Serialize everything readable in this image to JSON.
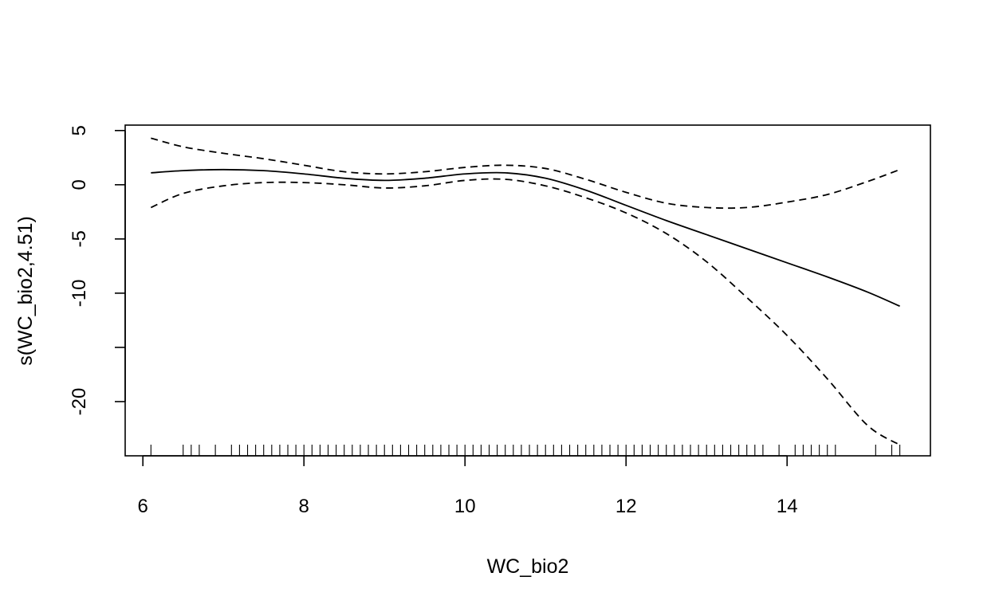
{
  "chart_data": {
    "type": "line",
    "title": "",
    "xlabel": "WC_bio2",
    "ylabel": "s(WC_bio2,4.51)",
    "xlim": [
      5.78,
      15.78
    ],
    "ylim": [
      -25.0,
      5.5
    ],
    "x_ticks": [
      6,
      8,
      10,
      12,
      14
    ],
    "x_tick_labels": [
      "6",
      "8",
      "10",
      "12",
      "14"
    ],
    "y_ticks": [
      5,
      0,
      -5,
      -10,
      -15,
      -20
    ],
    "y_tick_labels": [
      "5",
      "0",
      "-5",
      "-10",
      "",
      "-20"
    ],
    "grid": false,
    "legend": "none",
    "series": [
      {
        "role": "estimate",
        "line_style": "solid",
        "x": [
          6.1,
          6.5,
          7.0,
          7.5,
          8.0,
          8.5,
          9.0,
          9.5,
          10.0,
          10.5,
          11.0,
          11.5,
          12.0,
          12.5,
          13.0,
          13.5,
          14.0,
          14.5,
          15.0,
          15.4
        ],
        "y": [
          1.1,
          1.3,
          1.4,
          1.3,
          1.0,
          0.6,
          0.4,
          0.6,
          1.0,
          1.1,
          0.6,
          -0.5,
          -1.9,
          -3.3,
          -4.6,
          -5.9,
          -7.2,
          -8.5,
          -9.9,
          -11.2
        ]
      },
      {
        "role": "upper-band",
        "line_style": "dashed",
        "x": [
          6.1,
          6.5,
          7.0,
          7.5,
          8.0,
          8.5,
          9.0,
          9.5,
          10.0,
          10.5,
          11.0,
          11.5,
          12.0,
          12.5,
          13.0,
          13.5,
          14.0,
          14.5,
          15.0,
          15.4
        ],
        "y": [
          4.3,
          3.5,
          2.9,
          2.4,
          1.8,
          1.2,
          1.0,
          1.2,
          1.6,
          1.8,
          1.5,
          0.5,
          -0.7,
          -1.7,
          -2.1,
          -2.1,
          -1.6,
          -0.9,
          0.3,
          1.4
        ]
      },
      {
        "role": "lower-band",
        "line_style": "dashed",
        "x": [
          6.1,
          6.5,
          7.0,
          7.5,
          8.0,
          8.5,
          9.0,
          9.5,
          10.0,
          10.5,
          11.0,
          11.5,
          12.0,
          12.5,
          13.0,
          13.5,
          14.0,
          14.5,
          15.0,
          15.4
        ],
        "y": [
          -2.1,
          -0.8,
          -0.1,
          0.2,
          0.2,
          0.0,
          -0.3,
          -0.1,
          0.4,
          0.5,
          -0.1,
          -1.2,
          -2.6,
          -4.5,
          -7.1,
          -10.4,
          -13.9,
          -17.9,
          -22.2,
          -24.0
        ]
      }
    ],
    "rug": [
      6.1,
      6.5,
      6.6,
      6.7,
      6.9,
      7.1,
      7.2,
      7.3,
      7.4,
      7.5,
      7.6,
      7.7,
      7.8,
      7.9,
      8.0,
      8.1,
      8.2,
      8.3,
      8.4,
      8.5,
      8.6,
      8.7,
      8.8,
      8.9,
      9.0,
      9.1,
      9.2,
      9.3,
      9.4,
      9.5,
      9.6,
      9.7,
      9.8,
      9.9,
      10.0,
      10.1,
      10.2,
      10.3,
      10.4,
      10.5,
      10.6,
      10.7,
      10.8,
      10.9,
      11.0,
      11.1,
      11.2,
      11.3,
      11.4,
      11.5,
      11.6,
      11.7,
      11.8,
      11.9,
      12.0,
      12.1,
      12.2,
      12.3,
      12.4,
      12.5,
      12.6,
      12.7,
      12.8,
      12.9,
      13.0,
      13.1,
      13.2,
      13.3,
      13.4,
      13.5,
      13.6,
      13.7,
      13.9,
      14.1,
      14.2,
      14.3,
      14.4,
      14.5,
      14.6,
      15.1,
      15.3,
      15.4
    ]
  }
}
